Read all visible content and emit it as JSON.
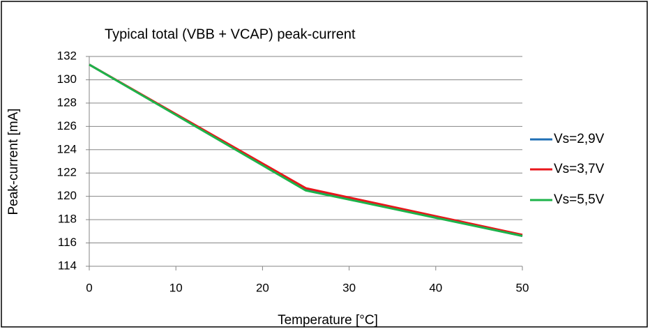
{
  "chart_data": {
    "type": "line",
    "title": "Typical total (VBB + VCAP) peak-current",
    "x_label": "Temperature [°C]",
    "y_label": "Peak-current [mA]",
    "x": [
      0,
      25,
      50
    ],
    "series": [
      {
        "name": "Vs=2,9V",
        "color": "#1f6fb5",
        "values": [
          131.3,
          120.6,
          116.6
        ]
      },
      {
        "name": "Vs=3,7V",
        "color": "#e8161b",
        "values": [
          131.3,
          120.7,
          116.7
        ]
      },
      {
        "name": "Vs=5,5V",
        "color": "#1db34a",
        "values": [
          131.3,
          120.5,
          116.6
        ]
      }
    ],
    "xlim": [
      0,
      50
    ],
    "xticks": [
      0,
      10,
      20,
      30,
      40,
      50
    ],
    "ylim": [
      114,
      132
    ],
    "yticks": [
      114,
      116,
      118,
      120,
      122,
      124,
      126,
      128,
      130,
      132
    ],
    "grid": true,
    "legend": "right"
  }
}
